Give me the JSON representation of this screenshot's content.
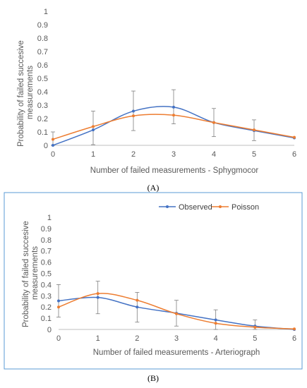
{
  "colors": {
    "observed": "#4472C4",
    "poisson": "#ED7D31",
    "errorbar": "#7f7f7f",
    "axis": "#bfbfbf",
    "frame": "#5b9bd5"
  },
  "chart_data": [
    {
      "type": "line",
      "panel": "(A)",
      "xlabel": "Number of failed measurements - Sphygmocor",
      "ylabel": "Probability of failed succesive measurements",
      "x": [
        0,
        1,
        2,
        3,
        4,
        5,
        6
      ],
      "xlim": [
        0,
        6
      ],
      "ylim": [
        0,
        1
      ],
      "yticks": [
        "0",
        "0.1",
        "0.2",
        "0.3",
        "0.4",
        "0.5",
        "0.6",
        "0.7",
        "0.8",
        "0.9",
        "1"
      ],
      "legend": "none",
      "series": [
        {
          "values": [
            0.0,
            0.115,
            0.255,
            0.285,
            0.17,
            0.11,
            0.055
          ],
          "err_low": [
            0.0,
            0.005,
            0.11,
            0.16,
            0.065,
            0.035,
            0.055
          ],
          "err_high": [
            0.1,
            0.255,
            0.405,
            0.415,
            0.275,
            0.19,
            0.055
          ]
        },
        {
          "values": [
            0.045,
            0.14,
            0.22,
            0.225,
            0.17,
            0.115,
            0.06
          ]
        }
      ]
    },
    {
      "type": "line",
      "panel": "(B)",
      "xlabel": "Number of failed measurements - Arteriograph",
      "ylabel": "Probability of failed succesive measurements",
      "x": [
        0,
        1,
        2,
        3,
        4,
        5,
        6
      ],
      "xlim": [
        0,
        6
      ],
      "ylim": [
        0,
        1
      ],
      "yticks": [
        "0",
        "0.1",
        "0.2",
        "0.3",
        "0.4",
        "0.5",
        "0.6",
        "0.7",
        "0.8",
        "0.9",
        "1"
      ],
      "legend": "top-right",
      "series": [
        {
          "name": "Observed",
          "values": [
            0.255,
            0.285,
            0.2,
            0.145,
            0.085,
            0.03,
            0.0
          ],
          "err_low": [
            0.11,
            0.14,
            0.065,
            0.03,
            0.0,
            0.0,
            0.0
          ],
          "err_high": [
            0.4,
            0.43,
            0.33,
            0.26,
            0.175,
            0.085,
            0.0
          ]
        },
        {
          "name": "Poisson",
          "values": [
            0.2,
            0.32,
            0.26,
            0.14,
            0.055,
            0.02,
            0.005
          ]
        }
      ]
    }
  ]
}
